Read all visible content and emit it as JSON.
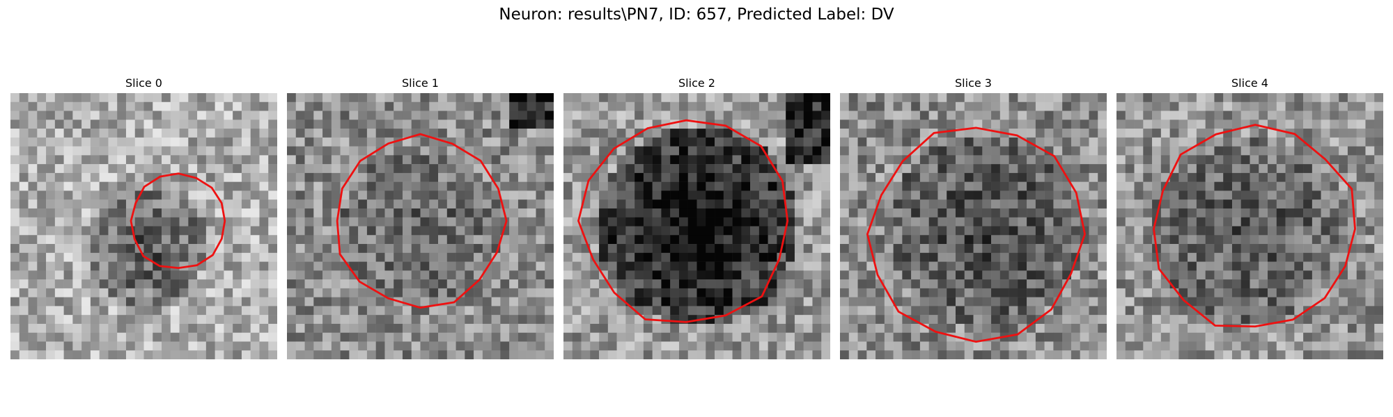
{
  "figure": {
    "title": "Neuron: results\\PN7, ID: 657, Predicted Label: DV"
  },
  "colors": {
    "contour": "#ee1111",
    "background": "#ffffff"
  },
  "slices": [
    {
      "label": "Slice 0"
    },
    {
      "label": "Slice 1"
    },
    {
      "label": "Slice 2"
    },
    {
      "label": "Slice 3"
    },
    {
      "label": "Slice 4"
    }
  ]
}
